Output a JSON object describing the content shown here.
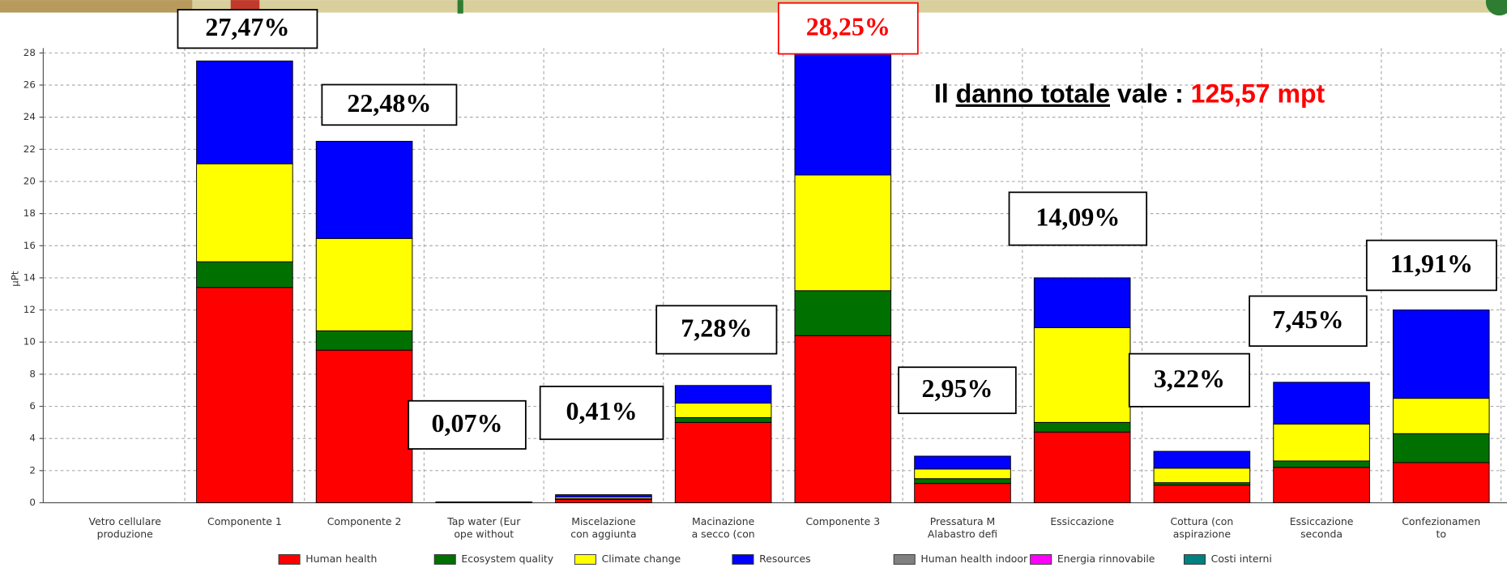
{
  "chart_data": {
    "type": "stacked_bar",
    "y_label": "µPt",
    "categories": [
      "Vetro cellulare\nproduzione",
      "Componente 1",
      "Componente 2",
      "Tap water (Eur\nope without",
      "Miscelazione\ncon aggiunta",
      "Macinazione\na secco (con",
      "Componente 3",
      "Pressatura M\nAlabastro defi",
      "Essiccazione",
      "Cottura (con\naspirazione",
      "Essiccazione\nseconda",
      "Confezionamen\nto"
    ],
    "series": [
      {
        "name": "Human health",
        "color": "#ff0000",
        "values": [
          0,
          13.4,
          9.5,
          0.05,
          0.2,
          5.0,
          10.4,
          1.2,
          4.4,
          1.1,
          2.2,
          2.5
        ]
      },
      {
        "name": "Ecosystem quality",
        "color": "#007000",
        "values": [
          0,
          1.6,
          1.2,
          0,
          0.05,
          0.3,
          2.8,
          0.3,
          0.6,
          0.15,
          0.4,
          1.8
        ]
      },
      {
        "name": "Climate change",
        "color": "#ffff00",
        "values": [
          0,
          6.1,
          5.75,
          0,
          0.1,
          0.9,
          7.2,
          0.6,
          5.9,
          0.9,
          2.3,
          2.2
        ]
      },
      {
        "name": "Resources",
        "color": "#0000ff",
        "values": [
          0,
          6.4,
          6.05,
          0,
          0.15,
          1.1,
          7.6,
          0.8,
          3.1,
          1.05,
          2.6,
          5.5
        ]
      },
      {
        "name": "Human health indoor",
        "color": "#808080",
        "values": [
          0,
          0,
          0,
          0,
          0,
          0,
          0,
          0,
          0,
          0,
          0,
          0
        ]
      },
      {
        "name": "Energia rinnovabile",
        "color": "#ff00ff",
        "values": [
          0,
          0,
          0,
          0,
          0,
          0,
          0,
          0,
          0,
          0,
          0,
          0
        ]
      },
      {
        "name": "Costi interni",
        "color": "#008080",
        "values": [
          0,
          0,
          0,
          0,
          0,
          0,
          0,
          0,
          0,
          0,
          0,
          0
        ]
      }
    ],
    "percent_labels": [
      null,
      "27,47%",
      "22,48%",
      "0,07%",
      "0,41%",
      "7,28%",
      "28,25%",
      "2,95%",
      "14,09%",
      "3,22%",
      "7,45%",
      "11,91%"
    ],
    "percent_label_colors": [
      null,
      "#000000",
      "#000000",
      "#000000",
      "#000000",
      "#000000",
      "#ff0000",
      "#000000",
      "#000000",
      "#000000",
      "#000000",
      "#000000"
    ],
    "total_note": [
      "Il ",
      "danno totale",
      " vale : ",
      "125,57 mpt"
    ],
    "total_note_colors": [
      "#000000",
      "#000000",
      "#000000",
      "#ff0000"
    ],
    "ylim": [
      0,
      28
    ],
    "yticks": [
      0,
      2,
      4,
      6,
      8,
      10,
      12,
      14,
      16,
      18,
      20,
      22,
      24,
      26,
      28
    ],
    "grid": true
  }
}
